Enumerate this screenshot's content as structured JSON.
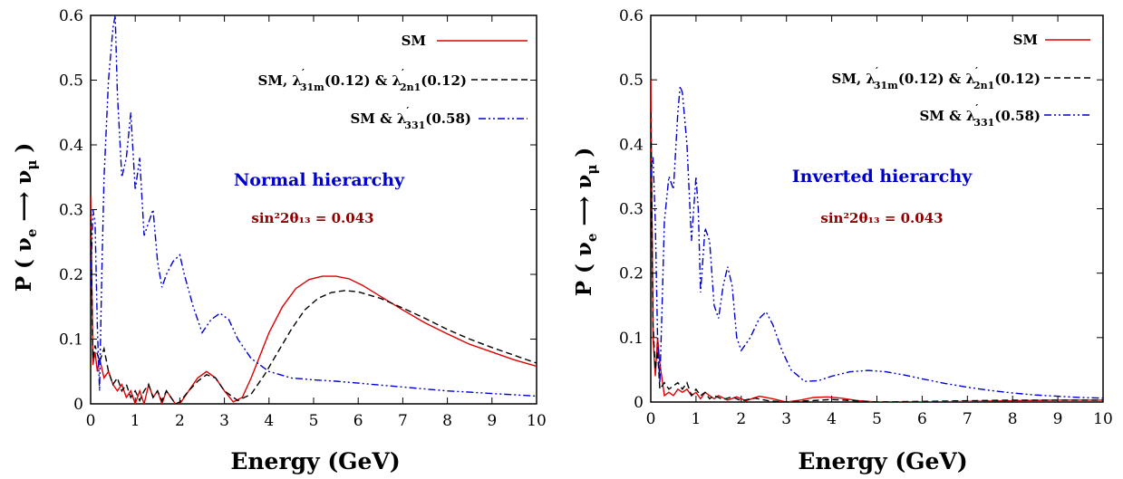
{
  "chart_data": [
    {
      "type": "line",
      "xlabel": "Energy (GeV)",
      "ylabel": "P ( ν_e ⟶ ν_μ )",
      "xlim": [
        0,
        10
      ],
      "ylim": [
        0,
        0.6
      ],
      "xticks": [
        "0",
        "1",
        "2",
        "3",
        "4",
        "5",
        "6",
        "7",
        "8",
        "9",
        "10"
      ],
      "yticks": [
        "0",
        "0.1",
        "0.2",
        "0.3",
        "0.4",
        "0.5",
        "0.6"
      ],
      "grid": false,
      "legend_position": "top-right",
      "annotation": "Normal hierarchy",
      "annotation_color": "#0000cc",
      "mixing_label": "sin²2θ₁₃ = 0.043",
      "mixing_color": "#8b0000",
      "series": [
        {
          "name": "SM",
          "color": "#dd0000",
          "dash": "solid",
          "points": [
            [
              0,
              0.32
            ],
            [
              0.05,
              0.06
            ],
            [
              0.1,
              0.08
            ],
            [
              0.15,
              0.05
            ],
            [
              0.2,
              0.07
            ],
            [
              0.3,
              0.04
            ],
            [
              0.4,
              0.05
            ],
            [
              0.5,
              0.03
            ],
            [
              0.6,
              0.02
            ],
            [
              0.7,
              0.03
            ],
            [
              0.8,
              0.01
            ],
            [
              0.9,
              0.02
            ],
            [
              1.0,
              0.0
            ],
            [
              1.1,
              0.02
            ],
            [
              1.2,
              0.0
            ],
            [
              1.3,
              0.03
            ],
            [
              1.4,
              0.01
            ],
            [
              1.5,
              0.02
            ],
            [
              1.6,
              0.0
            ],
            [
              1.7,
              0.02
            ],
            [
              1.8,
              0.01
            ],
            [
              1.9,
              0.0
            ],
            [
              2.0,
              0.0
            ],
            [
              2.2,
              0.02
            ],
            [
              2.4,
              0.04
            ],
            [
              2.6,
              0.05
            ],
            [
              2.8,
              0.04
            ],
            [
              3.0,
              0.02
            ],
            [
              3.2,
              0.003
            ],
            [
              3.4,
              0.01
            ],
            [
              3.6,
              0.04
            ],
            [
              3.8,
              0.075
            ],
            [
              4.0,
              0.11
            ],
            [
              4.3,
              0.15
            ],
            [
              4.6,
              0.178
            ],
            [
              4.9,
              0.192
            ],
            [
              5.2,
              0.197
            ],
            [
              5.5,
              0.197
            ],
            [
              5.8,
              0.193
            ],
            [
              6.1,
              0.183
            ],
            [
              6.5,
              0.166
            ],
            [
              7.0,
              0.145
            ],
            [
              7.5,
              0.125
            ],
            [
              8.0,
              0.108
            ],
            [
              8.5,
              0.092
            ],
            [
              9.0,
              0.08
            ],
            [
              9.5,
              0.068
            ],
            [
              10.0,
              0.058
            ]
          ]
        },
        {
          "name": "SM, λ′31m(0.12) & λ′2n1(0.12)",
          "color": "#000000",
          "dash": "dashed",
          "points": [
            [
              0,
              0.3
            ],
            [
              0.05,
              0.07
            ],
            [
              0.1,
              0.09
            ],
            [
              0.2,
              0.065
            ],
            [
              0.3,
              0.085
            ],
            [
              0.4,
              0.05
            ],
            [
              0.5,
              0.03
            ],
            [
              0.6,
              0.04
            ],
            [
              0.7,
              0.02
            ],
            [
              0.8,
              0.03
            ],
            [
              0.9,
              0.01
            ],
            [
              1.0,
              0.02
            ],
            [
              1.1,
              0.005
            ],
            [
              1.2,
              0.02
            ],
            [
              1.3,
              0.03
            ],
            [
              1.4,
              0.01
            ],
            [
              1.5,
              0.02
            ],
            [
              1.6,
              0.005
            ],
            [
              1.7,
              0.02
            ],
            [
              1.8,
              0.01
            ],
            [
              1.9,
              0.0
            ],
            [
              2.0,
              0.003
            ],
            [
              2.2,
              0.02
            ],
            [
              2.4,
              0.035
            ],
            [
              2.6,
              0.045
            ],
            [
              2.8,
              0.04
            ],
            [
              3.0,
              0.02
            ],
            [
              3.3,
              0.005
            ],
            [
              3.6,
              0.015
            ],
            [
              3.9,
              0.045
            ],
            [
              4.2,
              0.08
            ],
            [
              4.5,
              0.115
            ],
            [
              4.8,
              0.145
            ],
            [
              5.1,
              0.163
            ],
            [
              5.4,
              0.172
            ],
            [
              5.7,
              0.175
            ],
            [
              6.0,
              0.173
            ],
            [
              6.5,
              0.163
            ],
            [
              7.0,
              0.148
            ],
            [
              7.5,
              0.132
            ],
            [
              8.0,
              0.115
            ],
            [
              8.5,
              0.1
            ],
            [
              9.0,
              0.087
            ],
            [
              9.5,
              0.075
            ],
            [
              10.0,
              0.063
            ]
          ]
        },
        {
          "name": "SM & λ′331(0.58)",
          "color": "#0000cc",
          "dash": "dashdotdot",
          "points": [
            [
              0,
              0.18
            ],
            [
              0.05,
              0.3
            ],
            [
              0.1,
              0.28
            ],
            [
              0.15,
              0.12
            ],
            [
              0.2,
              0.02
            ],
            [
              0.25,
              0.2
            ],
            [
              0.3,
              0.35
            ],
            [
              0.4,
              0.5
            ],
            [
              0.5,
              0.58
            ],
            [
              0.55,
              0.6
            ],
            [
              0.6,
              0.48
            ],
            [
              0.7,
              0.35
            ],
            [
              0.8,
              0.38
            ],
            [
              0.9,
              0.45
            ],
            [
              1.0,
              0.33
            ],
            [
              1.1,
              0.38
            ],
            [
              1.2,
              0.26
            ],
            [
              1.3,
              0.28
            ],
            [
              1.4,
              0.3
            ],
            [
              1.5,
              0.22
            ],
            [
              1.6,
              0.18
            ],
            [
              1.7,
              0.2
            ],
            [
              1.85,
              0.22
            ],
            [
              2.0,
              0.23
            ],
            [
              2.1,
              0.2
            ],
            [
              2.3,
              0.15
            ],
            [
              2.5,
              0.11
            ],
            [
              2.7,
              0.13
            ],
            [
              2.9,
              0.14
            ],
            [
              3.1,
              0.13
            ],
            [
              3.3,
              0.1
            ],
            [
              3.6,
              0.07
            ],
            [
              4.0,
              0.05
            ],
            [
              4.5,
              0.04
            ],
            [
              5.0,
              0.037
            ],
            [
              5.5,
              0.035
            ],
            [
              6.0,
              0.032
            ],
            [
              6.5,
              0.029
            ],
            [
              7.0,
              0.026
            ],
            [
              7.5,
              0.023
            ],
            [
              8.0,
              0.02
            ],
            [
              8.5,
              0.018
            ],
            [
              9.0,
              0.016
            ],
            [
              9.5,
              0.014
            ],
            [
              10.0,
              0.012
            ]
          ]
        }
      ]
    },
    {
      "type": "line",
      "xlabel": "Energy (GeV)",
      "ylabel": "P ( ν_e ⟶ ν_μ )",
      "xlim": [
        0,
        10
      ],
      "ylim": [
        0,
        0.6
      ],
      "xticks": [
        "0",
        "1",
        "2",
        "3",
        "4",
        "5",
        "6",
        "7",
        "8",
        "9",
        "10"
      ],
      "yticks": [
        "0",
        "0.1",
        "0.2",
        "0.3",
        "0.4",
        "0.5",
        "0.6"
      ],
      "grid": false,
      "legend_position": "top-right",
      "annotation": "Inverted hierarchy",
      "annotation_color": "#0000cc",
      "mixing_label": "sin²2θ₁₃ = 0.043",
      "mixing_color": "#8b0000",
      "series": [
        {
          "name": "SM",
          "color": "#dd0000",
          "dash": "solid",
          "points": [
            [
              0,
              0.5
            ],
            [
              0.05,
              0.1
            ],
            [
              0.1,
              0.04
            ],
            [
              0.15,
              0.1
            ],
            [
              0.2,
              0.06
            ],
            [
              0.3,
              0.01
            ],
            [
              0.4,
              0.015
            ],
            [
              0.5,
              0.01
            ],
            [
              0.6,
              0.02
            ],
            [
              0.7,
              0.015
            ],
            [
              0.8,
              0.02
            ],
            [
              0.9,
              0.01
            ],
            [
              1.0,
              0.015
            ],
            [
              1.1,
              0.005
            ],
            [
              1.2,
              0.015
            ],
            [
              1.3,
              0.01
            ],
            [
              1.4,
              0.005
            ],
            [
              1.5,
              0.01
            ],
            [
              1.7,
              0.003
            ],
            [
              1.9,
              0.008
            ],
            [
              2.1,
              0.002
            ],
            [
              2.4,
              0.009
            ],
            [
              2.7,
              0.005
            ],
            [
              3.0,
              0.0
            ],
            [
              3.3,
              0.003
            ],
            [
              3.6,
              0.007
            ],
            [
              3.9,
              0.008
            ],
            [
              4.2,
              0.006
            ],
            [
              4.6,
              0.002
            ],
            [
              5.0,
              0.0
            ],
            [
              6.0,
              0.0
            ],
            [
              7.0,
              0.001
            ],
            [
              8.0,
              0.002
            ],
            [
              9.0,
              0.003
            ],
            [
              10.0,
              0.003
            ]
          ]
        },
        {
          "name": "SM, λ′31m(0.12) & λ′2n1(0.12)",
          "color": "#000000",
          "dash": "dashed",
          "points": [
            [
              0,
              0.45
            ],
            [
              0.05,
              0.12
            ],
            [
              0.1,
              0.05
            ],
            [
              0.15,
              0.08
            ],
            [
              0.2,
              0.02
            ],
            [
              0.3,
              0.03
            ],
            [
              0.4,
              0.02
            ],
            [
              0.5,
              0.025
            ],
            [
              0.6,
              0.03
            ],
            [
              0.7,
              0.02
            ],
            [
              0.8,
              0.03
            ],
            [
              0.9,
              0.01
            ],
            [
              1.0,
              0.02
            ],
            [
              1.1,
              0.01
            ],
            [
              1.2,
              0.015
            ],
            [
              1.3,
              0.005
            ],
            [
              1.4,
              0.01
            ],
            [
              1.6,
              0.004
            ],
            [
              1.8,
              0.008
            ],
            [
              2.0,
              0.002
            ],
            [
              2.3,
              0.006
            ],
            [
              2.6,
              0.002
            ],
            [
              3.0,
              0.0
            ],
            [
              3.5,
              0.002
            ],
            [
              4.0,
              0.004
            ],
            [
              4.5,
              0.002
            ],
            [
              5.0,
              0.0
            ],
            [
              6.0,
              0.001
            ],
            [
              7.0,
              0.002
            ],
            [
              8.0,
              0.003
            ],
            [
              9.0,
              0.003
            ],
            [
              10.0,
              0.003
            ]
          ]
        },
        {
          "name": "SM & λ′331(0.58)",
          "color": "#0000cc",
          "dash": "dashdotdot",
          "points": [
            [
              0,
              0.35
            ],
            [
              0.05,
              0.38
            ],
            [
              0.1,
              0.28
            ],
            [
              0.15,
              0.1
            ],
            [
              0.2,
              0.03
            ],
            [
              0.25,
              0.15
            ],
            [
              0.3,
              0.28
            ],
            [
              0.4,
              0.35
            ],
            [
              0.5,
              0.33
            ],
            [
              0.6,
              0.45
            ],
            [
              0.65,
              0.49
            ],
            [
              0.7,
              0.48
            ],
            [
              0.8,
              0.4
            ],
            [
              0.9,
              0.25
            ],
            [
              1.0,
              0.35
            ],
            [
              1.05,
              0.3
            ],
            [
              1.1,
              0.17
            ],
            [
              1.2,
              0.27
            ],
            [
              1.3,
              0.25
            ],
            [
              1.4,
              0.15
            ],
            [
              1.5,
              0.13
            ],
            [
              1.6,
              0.18
            ],
            [
              1.7,
              0.21
            ],
            [
              1.8,
              0.18
            ],
            [
              1.9,
              0.1
            ],
            [
              2.0,
              0.08
            ],
            [
              2.2,
              0.1
            ],
            [
              2.4,
              0.13
            ],
            [
              2.55,
              0.14
            ],
            [
              2.7,
              0.12
            ],
            [
              2.9,
              0.08
            ],
            [
              3.1,
              0.05
            ],
            [
              3.4,
              0.032
            ],
            [
              3.7,
              0.033
            ],
            [
              4.0,
              0.04
            ],
            [
              4.4,
              0.047
            ],
            [
              4.8,
              0.049
            ],
            [
              5.2,
              0.047
            ],
            [
              5.6,
              0.042
            ],
            [
              6.0,
              0.036
            ],
            [
              6.5,
              0.029
            ],
            [
              7.0,
              0.023
            ],
            [
              7.5,
              0.018
            ],
            [
              8.0,
              0.014
            ],
            [
              8.5,
              0.011
            ],
            [
              9.0,
              0.009
            ],
            [
              9.5,
              0.007
            ],
            [
              10.0,
              0.006
            ]
          ]
        }
      ]
    }
  ]
}
